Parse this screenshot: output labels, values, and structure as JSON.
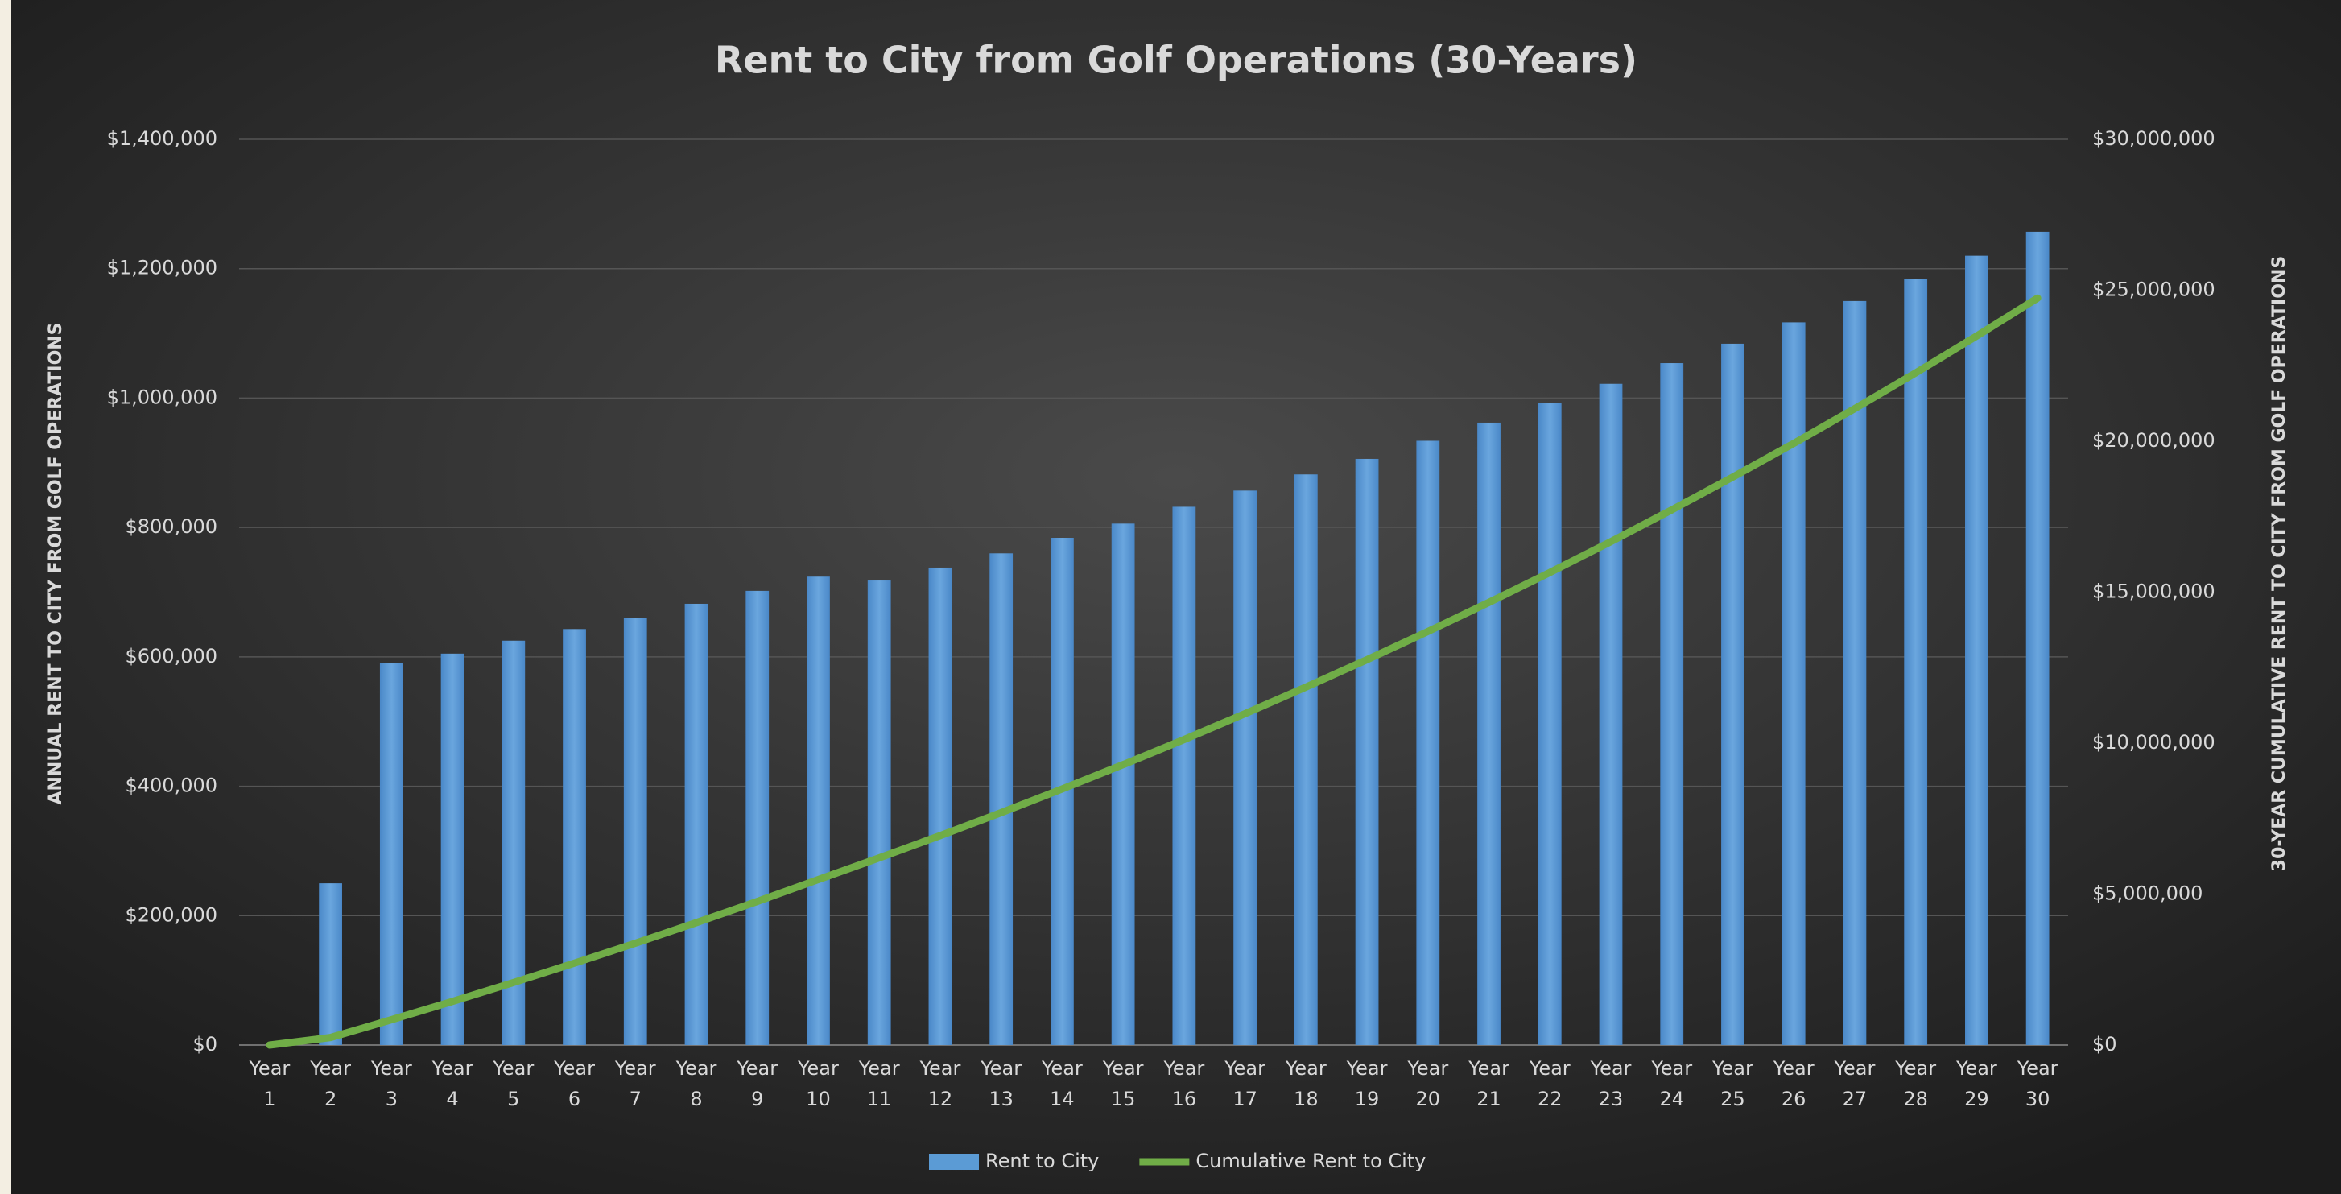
{
  "chart_data": {
    "type": "bar_line",
    "title": "Rent to City from Golf Operations (30-Years)",
    "y_label": "ANNUAL RENT TO CITY FROM GOLF OPERATIONS",
    "y2_label": "30-YEAR CUMULATIVE RENT TO CITY FROM GOLF OPERATIONS",
    "categories": [
      "Year 1",
      "Year 2",
      "Year 3",
      "Year 4",
      "Year 5",
      "Year 6",
      "Year 7",
      "Year 8",
      "Year 9",
      "Year 10",
      "Year 11",
      "Year 12",
      "Year 13",
      "Year 14",
      "Year 15",
      "Year 16",
      "Year 17",
      "Year 18",
      "Year 19",
      "Year 20",
      "Year 21",
      "Year 22",
      "Year 23",
      "Year 24",
      "Year 25",
      "Year 26",
      "Year 27",
      "Year 28",
      "Year 29",
      "Year 30"
    ],
    "series": [
      {
        "name": "Rent to City",
        "type": "bar",
        "color": "#5b9bd5",
        "values": [
          0,
          250000,
          590000,
          605000,
          625000,
          643000,
          660000,
          682000,
          702000,
          724000,
          718000,
          738000,
          760000,
          784000,
          806000,
          832000,
          857000,
          882000,
          906000,
          934000,
          962000,
          992000,
          1022000,
          1054000,
          1084000,
          1117000,
          1150000,
          1184000,
          1220000,
          1257000
        ]
      },
      {
        "name": "Cumulative Rent to City",
        "type": "line",
        "axis": "y2",
        "color": "#70ad47",
        "values": [
          0,
          250000,
          840000,
          1445000,
          2070000,
          2713000,
          3373000,
          4055000,
          4757000,
          5481000,
          6199000,
          6937000,
          7697000,
          8481000,
          9287000,
          10119000,
          10976000,
          11858000,
          12764000,
          13698000,
          14660000,
          15652000,
          16674000,
          17728000,
          18812000,
          19929000,
          21079000,
          22263000,
          23483000,
          24740000
        ]
      }
    ],
    "ylim": [
      0,
      1400000
    ],
    "yticks": [
      {
        "value": 0,
        "label": "$0"
      },
      {
        "value": 200000,
        "label": "$200,000"
      },
      {
        "value": 400000,
        "label": "$400,000"
      },
      {
        "value": 600000,
        "label": "$600,000"
      },
      {
        "value": 800000,
        "label": "$800,000"
      },
      {
        "value": 1000000,
        "label": "$1,000,000"
      },
      {
        "value": 1200000,
        "label": "$1,200,000"
      },
      {
        "value": 1400000,
        "label": "$1,400,000"
      }
    ],
    "y2lim": [
      0,
      30000000
    ],
    "y2ticks": [
      {
        "value": 0,
        "label": "$0"
      },
      {
        "value": 5000000,
        "label": "$5,000,000"
      },
      {
        "value": 10000000,
        "label": "$10,000,000"
      },
      {
        "value": 15000000,
        "label": "$15,000,000"
      },
      {
        "value": 20000000,
        "label": "$20,000,000"
      },
      {
        "value": 25000000,
        "label": "$25,000,000"
      },
      {
        "value": 30000000,
        "label": "$30,000,000"
      }
    ],
    "grid": true,
    "legend": "bottom"
  }
}
